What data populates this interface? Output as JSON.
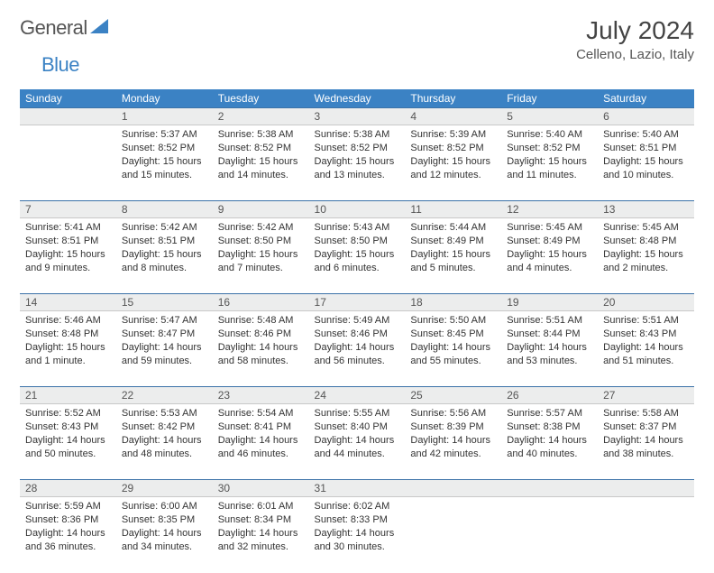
{
  "brand": {
    "part1": "General",
    "part2": "Blue"
  },
  "title": {
    "month": "July 2024",
    "location": "Celleno, Lazio, Italy"
  },
  "colors": {
    "header_bg": "#3b82c4",
    "header_text": "#ffffff",
    "daynum_bg": "#eceded",
    "daynum_text": "#555555",
    "rule_top": "#3b72a8",
    "rule_bottom": "#c8c8c8",
    "body_text": "#333333",
    "page_bg": "#ffffff"
  },
  "weekdays": [
    "Sunday",
    "Monday",
    "Tuesday",
    "Wednesday",
    "Thursday",
    "Friday",
    "Saturday"
  ],
  "weeks": [
    [
      null,
      {
        "n": "1",
        "sunrise": "5:37 AM",
        "sunset": "8:52 PM",
        "daylight": "15 hours and 15 minutes."
      },
      {
        "n": "2",
        "sunrise": "5:38 AM",
        "sunset": "8:52 PM",
        "daylight": "15 hours and 14 minutes."
      },
      {
        "n": "3",
        "sunrise": "5:38 AM",
        "sunset": "8:52 PM",
        "daylight": "15 hours and 13 minutes."
      },
      {
        "n": "4",
        "sunrise": "5:39 AM",
        "sunset": "8:52 PM",
        "daylight": "15 hours and 12 minutes."
      },
      {
        "n": "5",
        "sunrise": "5:40 AM",
        "sunset": "8:52 PM",
        "daylight": "15 hours and 11 minutes."
      },
      {
        "n": "6",
        "sunrise": "5:40 AM",
        "sunset": "8:51 PM",
        "daylight": "15 hours and 10 minutes."
      }
    ],
    [
      {
        "n": "7",
        "sunrise": "5:41 AM",
        "sunset": "8:51 PM",
        "daylight": "15 hours and 9 minutes."
      },
      {
        "n": "8",
        "sunrise": "5:42 AM",
        "sunset": "8:51 PM",
        "daylight": "15 hours and 8 minutes."
      },
      {
        "n": "9",
        "sunrise": "5:42 AM",
        "sunset": "8:50 PM",
        "daylight": "15 hours and 7 minutes."
      },
      {
        "n": "10",
        "sunrise": "5:43 AM",
        "sunset": "8:50 PM",
        "daylight": "15 hours and 6 minutes."
      },
      {
        "n": "11",
        "sunrise": "5:44 AM",
        "sunset": "8:49 PM",
        "daylight": "15 hours and 5 minutes."
      },
      {
        "n": "12",
        "sunrise": "5:45 AM",
        "sunset": "8:49 PM",
        "daylight": "15 hours and 4 minutes."
      },
      {
        "n": "13",
        "sunrise": "5:45 AM",
        "sunset": "8:48 PM",
        "daylight": "15 hours and 2 minutes."
      }
    ],
    [
      {
        "n": "14",
        "sunrise": "5:46 AM",
        "sunset": "8:48 PM",
        "daylight": "15 hours and 1 minute."
      },
      {
        "n": "15",
        "sunrise": "5:47 AM",
        "sunset": "8:47 PM",
        "daylight": "14 hours and 59 minutes."
      },
      {
        "n": "16",
        "sunrise": "5:48 AM",
        "sunset": "8:46 PM",
        "daylight": "14 hours and 58 minutes."
      },
      {
        "n": "17",
        "sunrise": "5:49 AM",
        "sunset": "8:46 PM",
        "daylight": "14 hours and 56 minutes."
      },
      {
        "n": "18",
        "sunrise": "5:50 AM",
        "sunset": "8:45 PM",
        "daylight": "14 hours and 55 minutes."
      },
      {
        "n": "19",
        "sunrise": "5:51 AM",
        "sunset": "8:44 PM",
        "daylight": "14 hours and 53 minutes."
      },
      {
        "n": "20",
        "sunrise": "5:51 AM",
        "sunset": "8:43 PM",
        "daylight": "14 hours and 51 minutes."
      }
    ],
    [
      {
        "n": "21",
        "sunrise": "5:52 AM",
        "sunset": "8:43 PM",
        "daylight": "14 hours and 50 minutes."
      },
      {
        "n": "22",
        "sunrise": "5:53 AM",
        "sunset": "8:42 PM",
        "daylight": "14 hours and 48 minutes."
      },
      {
        "n": "23",
        "sunrise": "5:54 AM",
        "sunset": "8:41 PM",
        "daylight": "14 hours and 46 minutes."
      },
      {
        "n": "24",
        "sunrise": "5:55 AM",
        "sunset": "8:40 PM",
        "daylight": "14 hours and 44 minutes."
      },
      {
        "n": "25",
        "sunrise": "5:56 AM",
        "sunset": "8:39 PM",
        "daylight": "14 hours and 42 minutes."
      },
      {
        "n": "26",
        "sunrise": "5:57 AM",
        "sunset": "8:38 PM",
        "daylight": "14 hours and 40 minutes."
      },
      {
        "n": "27",
        "sunrise": "5:58 AM",
        "sunset": "8:37 PM",
        "daylight": "14 hours and 38 minutes."
      }
    ],
    [
      {
        "n": "28",
        "sunrise": "5:59 AM",
        "sunset": "8:36 PM",
        "daylight": "14 hours and 36 minutes."
      },
      {
        "n": "29",
        "sunrise": "6:00 AM",
        "sunset": "8:35 PM",
        "daylight": "14 hours and 34 minutes."
      },
      {
        "n": "30",
        "sunrise": "6:01 AM",
        "sunset": "8:34 PM",
        "daylight": "14 hours and 32 minutes."
      },
      {
        "n": "31",
        "sunrise": "6:02 AM",
        "sunset": "8:33 PM",
        "daylight": "14 hours and 30 minutes."
      },
      null,
      null,
      null
    ]
  ],
  "labels": {
    "sunrise": "Sunrise:",
    "sunset": "Sunset:",
    "daylight": "Daylight:"
  }
}
